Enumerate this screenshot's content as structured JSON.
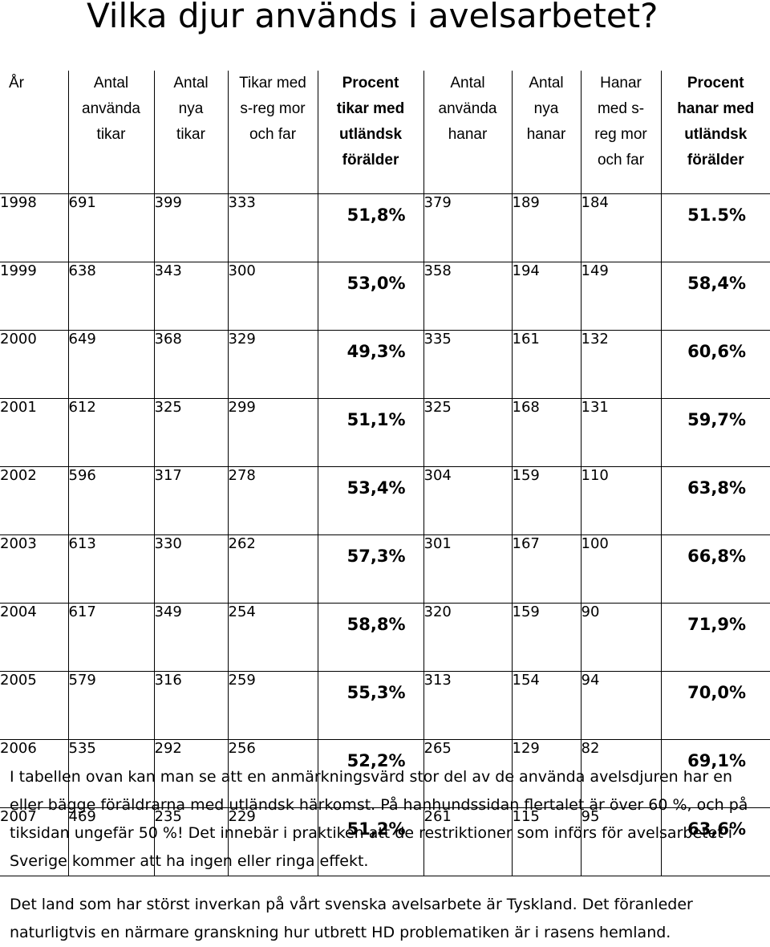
{
  "title": "Vilka djur används i avelsarbetet?",
  "table": {
    "headers": [
      [
        "År"
      ],
      [
        "Antal",
        "använda",
        "tikar"
      ],
      [
        "Antal",
        "nya",
        "tikar"
      ],
      [
        "Tikar med",
        "s-reg mor",
        "och far"
      ],
      [
        "Procent",
        "tikar med",
        "utländsk",
        "förälder"
      ],
      [
        "Antal",
        "använda",
        "hanar"
      ],
      [
        "Antal",
        "nya",
        "hanar"
      ],
      [
        "Hanar",
        "med s-",
        "reg mor",
        "och far"
      ],
      [
        "Procent",
        "hanar med",
        "utländsk",
        "förälder"
      ]
    ],
    "rows": [
      [
        "1998",
        "691",
        "399",
        "333",
        "51,8%",
        "379",
        "189",
        "184",
        "51.5%"
      ],
      [
        "1999",
        "638",
        "343",
        "300",
        "53,0%",
        "358",
        "194",
        "149",
        "58,4%"
      ],
      [
        "2000",
        "649",
        "368",
        "329",
        "49,3%",
        "335",
        "161",
        "132",
        "60,6%"
      ],
      [
        "2001",
        "612",
        "325",
        "299",
        "51,1%",
        "325",
        "168",
        "131",
        "59,7%"
      ],
      [
        "2002",
        "596",
        "317",
        "278",
        "53,4%",
        "304",
        "159",
        "110",
        "63,8%"
      ],
      [
        "2003",
        "613",
        "330",
        "262",
        "57,3%",
        "301",
        "167",
        "100",
        "66,8%"
      ],
      [
        "2004",
        "617",
        "349",
        "254",
        "58,8%",
        "320",
        "159",
        "90",
        "71,9%"
      ],
      [
        "2005",
        "579",
        "316",
        "259",
        "55,3%",
        "313",
        "154",
        "94",
        "70,0%"
      ],
      [
        "2006",
        "535",
        "292",
        "256",
        "52,2%",
        "265",
        "129",
        "82",
        "69,1%"
      ],
      [
        "2007",
        "469",
        "235",
        "229",
        "51,2%",
        "261",
        "115",
        "95",
        "63,6%"
      ]
    ]
  },
  "paragraphs": [
    "I tabellen ovan kan man se att en anmärkningsvärd stor del av de använda avelsdjuren har en eller bägge föräldrarna med utländsk härkomst. På hanhundssidan flertalet är över 60 %, och på tiksidan ungefär 50 %! Det innebär i praktiken att de restriktioner som införs för avelsarbetet i Sverige kommer att ha ingen eller ringa effekt.",
    "Det land som har störst inverkan på vårt svenska avelsarbete är Tyskland. Det föranleder naturligtvis en närmare granskning hur utbrett HD problematiken är i rasens hemland."
  ]
}
